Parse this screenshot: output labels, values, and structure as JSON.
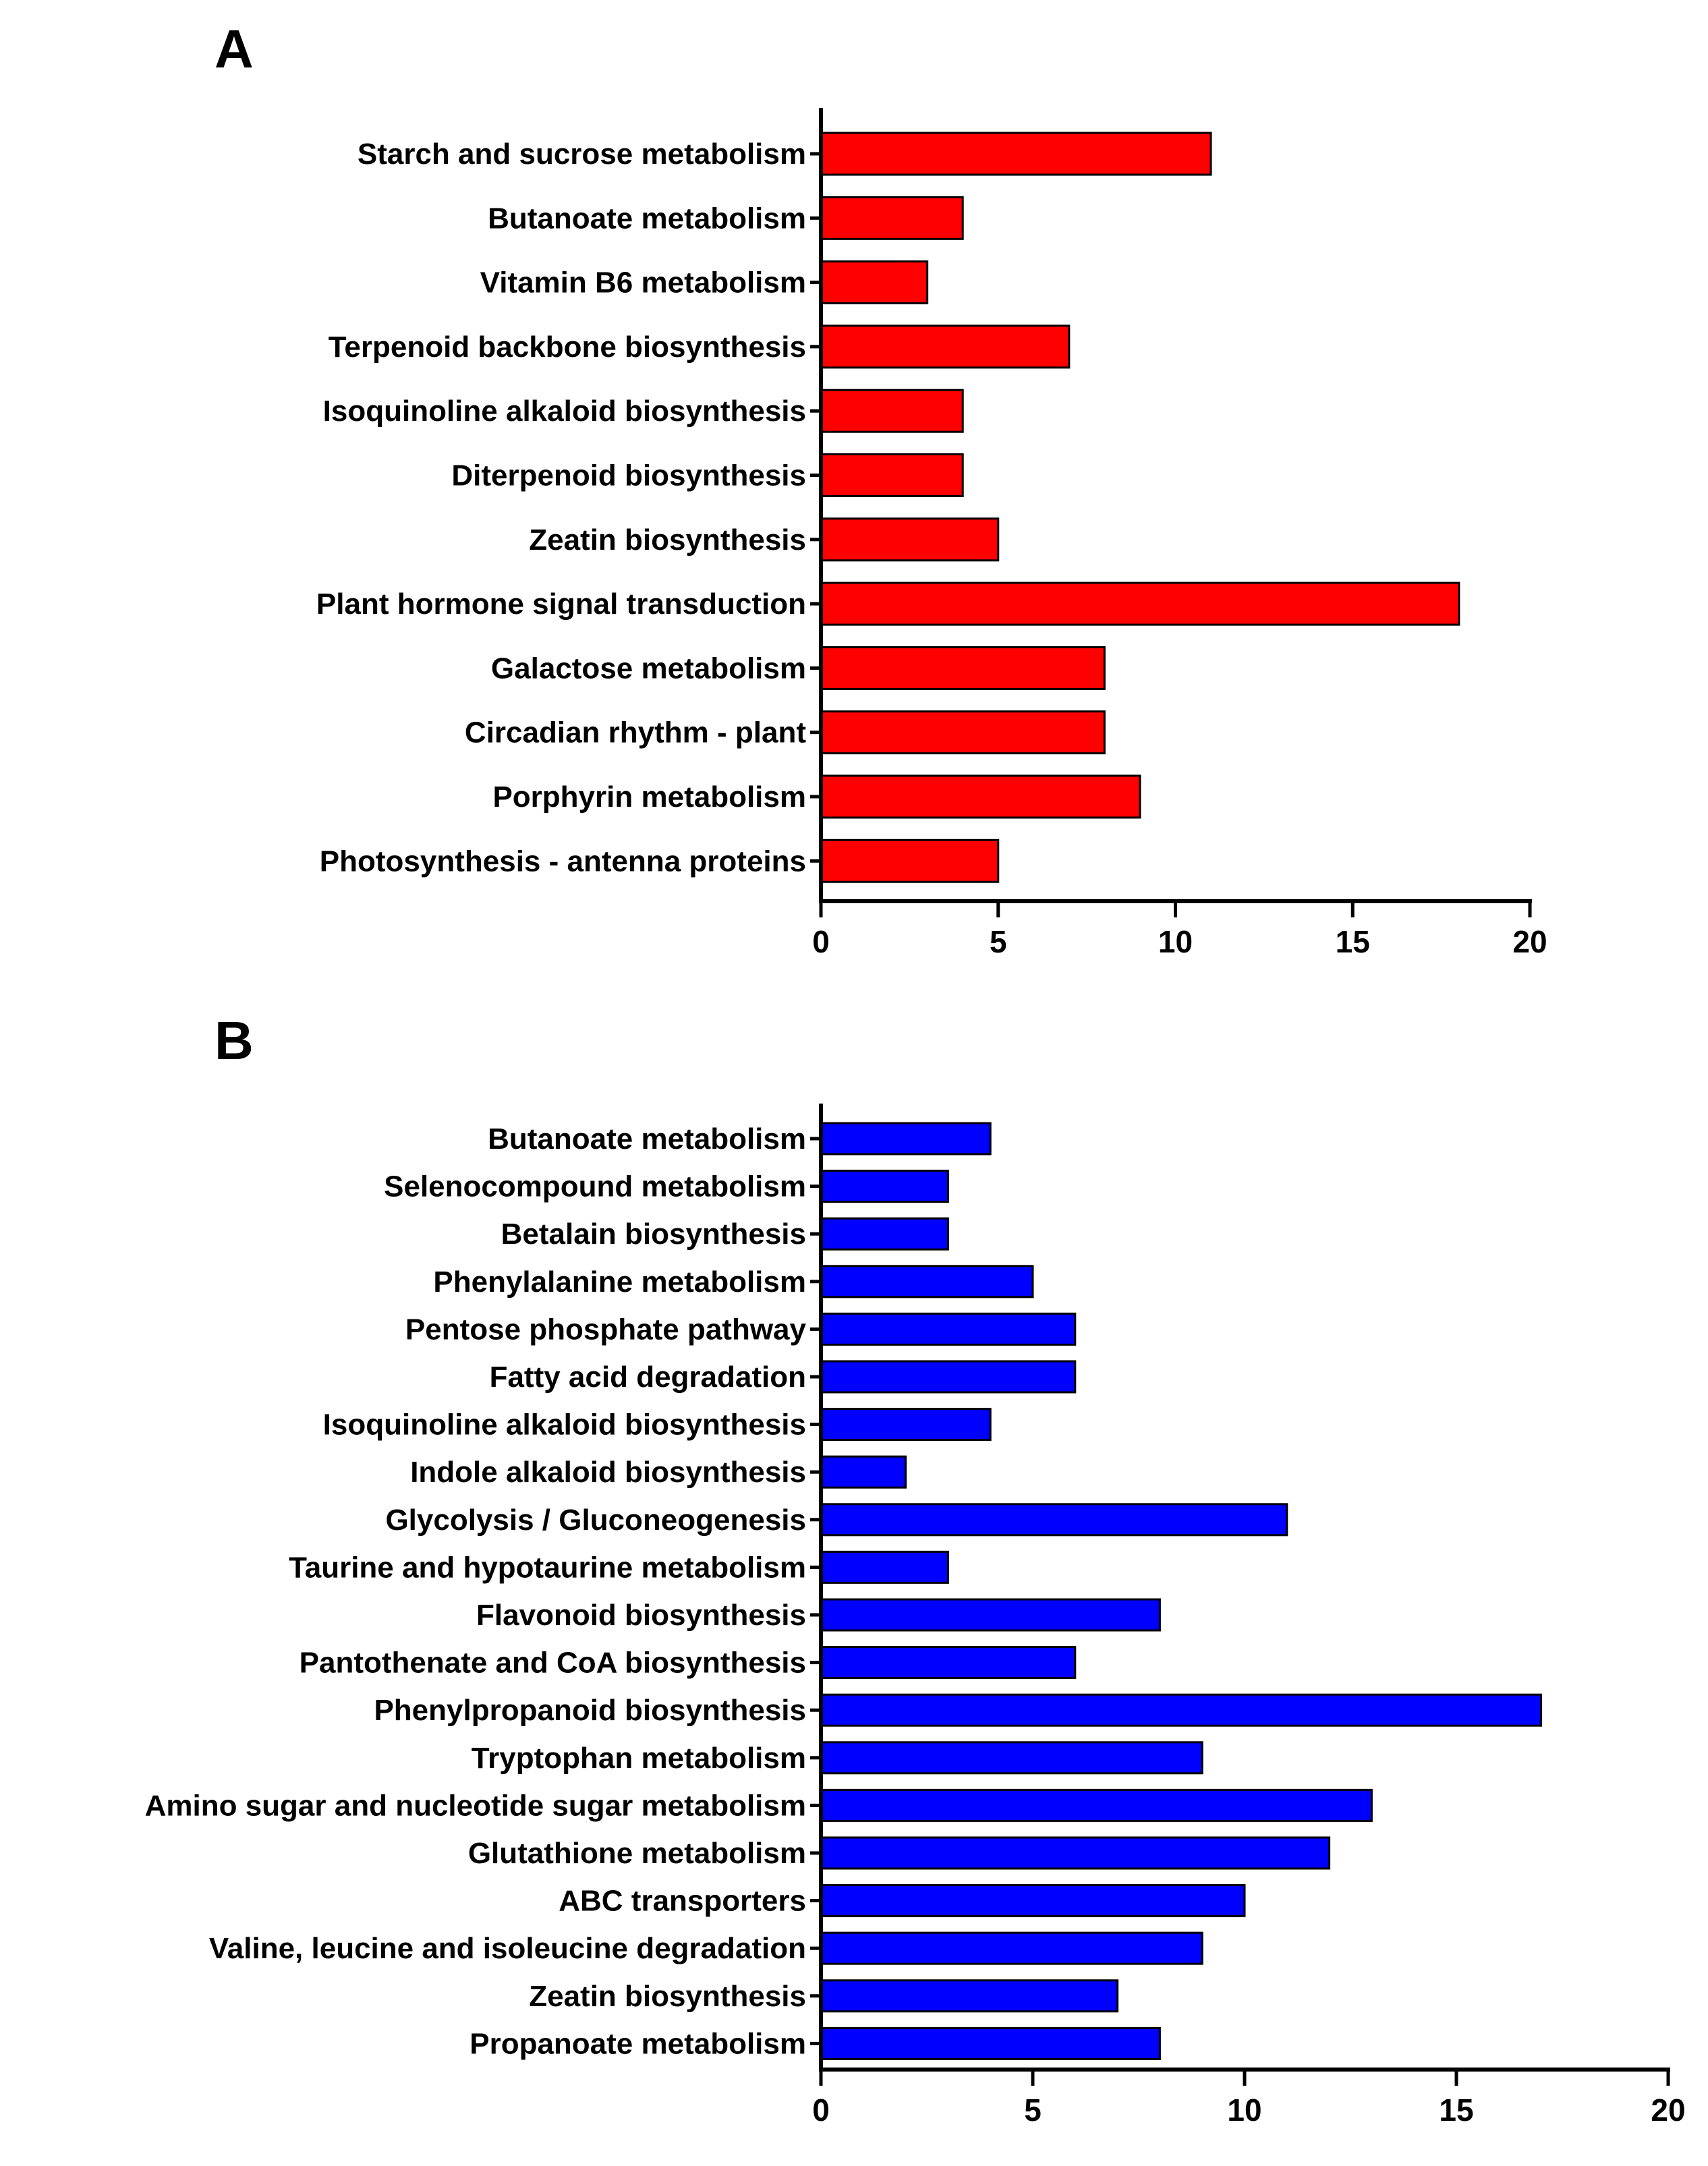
{
  "colors": {
    "panel_a_bar": "#ff0000",
    "panel_b_bar": "#0000ff",
    "axis": "#000000"
  },
  "chart_data": [
    {
      "panel": "A",
      "type": "bar",
      "orientation": "horizontal",
      "title": "",
      "xlabel": "",
      "ylabel": "",
      "xlim": [
        0,
        20
      ],
      "xticks": [
        0,
        5,
        10,
        15,
        20
      ],
      "grid": false,
      "legend": "none",
      "bar_color": "#ff0000",
      "categories": [
        "Starch and sucrose metabolism",
        "Butanoate metabolism",
        "Vitamin B6 metabolism",
        "Terpenoid backbone biosynthesis",
        "Isoquinoline alkaloid biosynthesis",
        "Diterpenoid biosynthesis",
        "Zeatin biosynthesis",
        "Plant hormone signal transduction",
        "Galactose metabolism",
        "Circadian rhythm - plant",
        "Porphyrin metabolism",
        "Photosynthesis - antenna proteins"
      ],
      "values": [
        11,
        4,
        3,
        7,
        4,
        4,
        5,
        18,
        8,
        8,
        9,
        5
      ]
    },
    {
      "panel": "B",
      "type": "bar",
      "orientation": "horizontal",
      "title": "",
      "xlabel": "",
      "ylabel": "",
      "xlim": [
        0,
        20
      ],
      "xticks": [
        0,
        5,
        10,
        15,
        20
      ],
      "grid": false,
      "legend": "none",
      "bar_color": "#0000ff",
      "categories": [
        "Butanoate metabolism",
        "Selenocompound metabolism",
        "Betalain biosynthesis",
        "Phenylalanine metabolism",
        "Pentose phosphate pathway",
        "Fatty acid degradation",
        "Isoquinoline alkaloid biosynthesis",
        "Indole alkaloid biosynthesis",
        "Glycolysis / Gluconeogenesis",
        "Taurine and hypotaurine metabolism",
        "Flavonoid biosynthesis",
        "Pantothenate and CoA biosynthesis",
        "Phenylpropanoid biosynthesis",
        "Tryptophan metabolism",
        "Amino sugar and nucleotide sugar metabolism",
        "Glutathione metabolism",
        "ABC transporters",
        "Valine, leucine and isoleucine degradation",
        "Zeatin biosynthesis",
        "Propanoate metabolism"
      ],
      "values": [
        4,
        3,
        3,
        5,
        6,
        6,
        4,
        2,
        11,
        3,
        8,
        6,
        17,
        9,
        13,
        12,
        10,
        9,
        7,
        8
      ]
    }
  ]
}
